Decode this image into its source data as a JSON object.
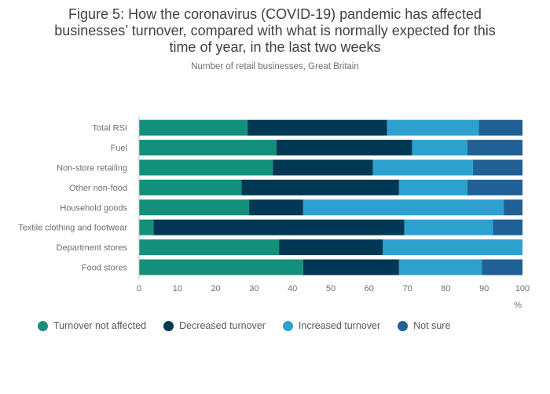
{
  "title_lines": [
    "Figure 5: How the coronavirus (COVID-19) pandemic has affected",
    "businesses’ turnover, compared with what is normally expected for this",
    "time of year, in the last two weeks"
  ],
  "subtitle": "Number of retail businesses, Great Britain",
  "colors": {
    "not_affected": "#13907c",
    "decreased": "#003854",
    "increased": "#2ca1d0",
    "not_sure": "#206095"
  },
  "legend": [
    {
      "label": "Turnover not affected",
      "color": "#13907c"
    },
    {
      "label": "Decreased turnover",
      "color": "#003854"
    },
    {
      "label": "Increased turnover",
      "color": "#2ca1d0"
    },
    {
      "label": "Not sure",
      "color": "#206095"
    }
  ],
  "chart_data": {
    "type": "bar",
    "orientation": "horizontal",
    "stacked": true,
    "title": "Figure 5: How the coronavirus (COVID-19) pandemic has affected businesses’ turnover, compared with what is normally expected for this time of year, in the last two weeks",
    "subtitle": "Number of retail businesses, Great Britain",
    "xlabel": "%",
    "xlim": [
      0,
      100
    ],
    "xticks": [
      0,
      10,
      20,
      30,
      40,
      50,
      60,
      70,
      80,
      90,
      100
    ],
    "categories": [
      "Total RSI",
      "Fuel",
      "Non-store retailing",
      "Other non-food",
      "Household goods",
      "Textile clothing and footwear",
      "Department stores",
      "Food stores"
    ],
    "series": [
      {
        "name": "Turnover not affected",
        "color": "#13907c",
        "values": [
          28.3,
          35.8,
          34.9,
          26.7,
          28.7,
          3.8,
          36.5,
          42.8
        ]
      },
      {
        "name": "Decreased turnover",
        "color": "#003854",
        "values": [
          36.4,
          35.4,
          26.1,
          41.1,
          14.1,
          65.4,
          27.1,
          25.0
        ]
      },
      {
        "name": "Increased turnover",
        "color": "#2ca1d0",
        "values": [
          23.9,
          14.4,
          26.1,
          17.8,
          52.3,
          23.1,
          36.4,
          21.6
        ]
      },
      {
        "name": "Not sure",
        "color": "#206095",
        "values": [
          11.4,
          14.4,
          12.9,
          14.4,
          4.9,
          7.7,
          0.0,
          10.6
        ]
      }
    ],
    "grid": false,
    "legend_position": "bottom"
  }
}
